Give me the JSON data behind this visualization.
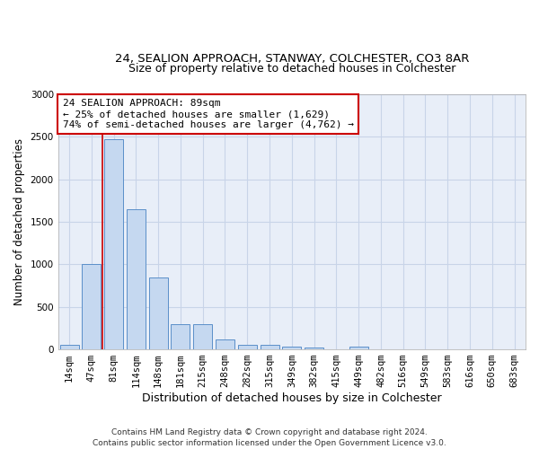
{
  "title_line1": "24, SEALION APPROACH, STANWAY, COLCHESTER, CO3 8AR",
  "title_line2": "Size of property relative to detached houses in Colchester",
  "xlabel": "Distribution of detached houses by size in Colchester",
  "ylabel": "Number of detached properties",
  "categories": [
    "14sqm",
    "47sqm",
    "81sqm",
    "114sqm",
    "148sqm",
    "181sqm",
    "215sqm",
    "248sqm",
    "282sqm",
    "315sqm",
    "349sqm",
    "382sqm",
    "415sqm",
    "449sqm",
    "482sqm",
    "516sqm",
    "549sqm",
    "583sqm",
    "616sqm",
    "650sqm",
    "683sqm"
  ],
  "values": [
    50,
    1000,
    2470,
    1650,
    840,
    300,
    300,
    120,
    50,
    50,
    35,
    20,
    0,
    30,
    0,
    0,
    0,
    0,
    0,
    0,
    0
  ],
  "bar_color": "#c5d8f0",
  "bar_edge_color": "#5b8fc9",
  "annotation_text": "24 SEALION APPROACH: 89sqm\n← 25% of detached houses are smaller (1,629)\n74% of semi-detached houses are larger (4,762) →",
  "annotation_box_color": "#ffffff",
  "annotation_box_edge_color": "#cc0000",
  "vline_color": "#cc0000",
  "vline_x_index": 1.5,
  "ylim": [
    0,
    3000
  ],
  "yticks": [
    0,
    500,
    1000,
    1500,
    2000,
    2500,
    3000
  ],
  "grid_color": "#c8d4e8",
  "background_color": "#e8eef8",
  "footnote": "Contains HM Land Registry data © Crown copyright and database right 2024.\nContains public sector information licensed under the Open Government Licence v3.0.",
  "title_fontsize": 9.5,
  "subtitle_fontsize": 9,
  "xlabel_fontsize": 9,
  "ylabel_fontsize": 8.5,
  "tick_fontsize": 7.5,
  "annot_fontsize": 8,
  "footnote_fontsize": 6.5
}
